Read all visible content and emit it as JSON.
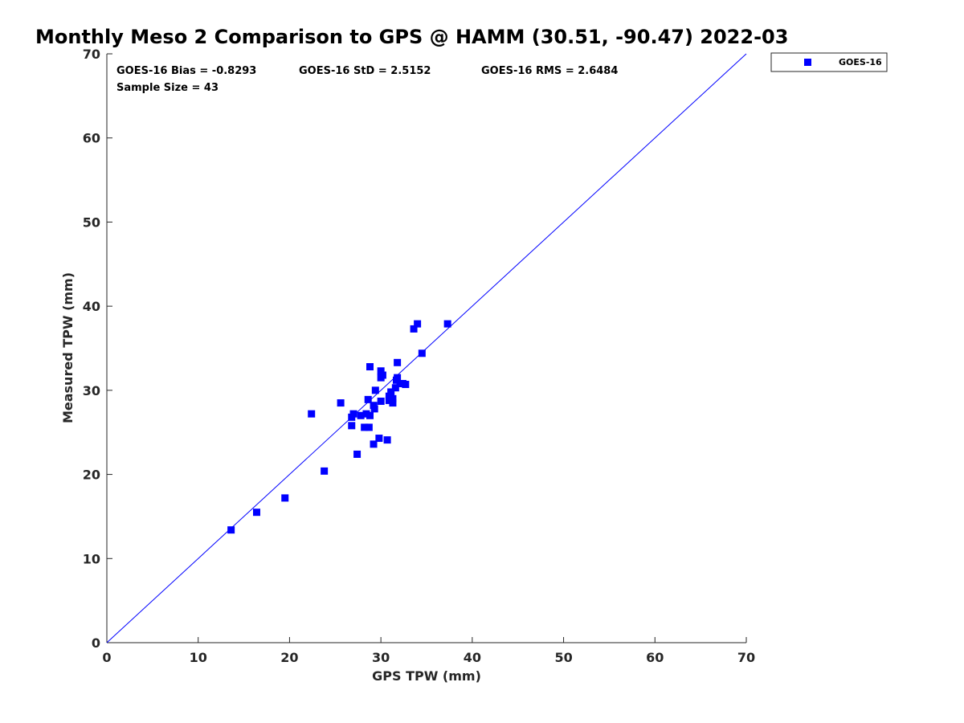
{
  "chart_data": {
    "type": "scatter",
    "title": "Monthly Meso 2 Comparison to GPS @ HAMM (30.51, -90.47) 2022-03",
    "xlabel": "GPS TPW (mm)",
    "ylabel": "Measured TPW (mm)",
    "xlim": [
      0,
      70
    ],
    "ylim": [
      0,
      70
    ],
    "xticks": [
      0,
      10,
      20,
      30,
      40,
      50,
      60,
      70
    ],
    "yticks": [
      0,
      10,
      20,
      30,
      40,
      50,
      60,
      70
    ],
    "grid": false,
    "legend": {
      "position": "outside-top-right",
      "entries": [
        "GOES-16"
      ]
    },
    "stats": {
      "bias": "GOES-16 Bias = -0.8293",
      "std": "GOES-16 StD = 2.5152",
      "rms": "GOES-16 RMS = 2.6484",
      "sample": "Sample Size = 43"
    },
    "reference_line": {
      "type": "one-to-one",
      "from": [
        0,
        0
      ],
      "to": [
        70,
        70
      ]
    },
    "series": [
      {
        "name": "GOES-16",
        "color": "#0000ff",
        "marker": "square",
        "points": [
          [
            13.6,
            13.4
          ],
          [
            16.4,
            15.5
          ],
          [
            19.5,
            17.2
          ],
          [
            22.4,
            27.2
          ],
          [
            23.8,
            20.4
          ],
          [
            25.6,
            28.5
          ],
          [
            26.8,
            25.8
          ],
          [
            26.8,
            26.8
          ],
          [
            27.0,
            27.2
          ],
          [
            27.4,
            22.4
          ],
          [
            27.8,
            27.0
          ],
          [
            28.2,
            25.6
          ],
          [
            28.4,
            27.2
          ],
          [
            28.6,
            28.9
          ],
          [
            28.7,
            25.6
          ],
          [
            28.8,
            27.0
          ],
          [
            28.8,
            32.8
          ],
          [
            29.2,
            23.6
          ],
          [
            29.2,
            28.2
          ],
          [
            29.3,
            27.8
          ],
          [
            29.4,
            30.0
          ],
          [
            29.8,
            24.3
          ],
          [
            30.0,
            28.7
          ],
          [
            30.0,
            32.3
          ],
          [
            30.0,
            31.5
          ],
          [
            30.2,
            31.8
          ],
          [
            30.7,
            24.1
          ],
          [
            30.9,
            28.8
          ],
          [
            30.9,
            29.3
          ],
          [
            31.1,
            29.8
          ],
          [
            31.3,
            28.5
          ],
          [
            31.3,
            29.0
          ],
          [
            31.6,
            30.3
          ],
          [
            31.8,
            31.5
          ],
          [
            31.8,
            33.3
          ],
          [
            32.1,
            30.8
          ],
          [
            32.4,
            30.8
          ],
          [
            32.7,
            30.7
          ],
          [
            33.6,
            37.3
          ],
          [
            34.0,
            37.9
          ],
          [
            34.5,
            34.4
          ],
          [
            37.3,
            37.9
          ],
          [
            31.7,
            31.2
          ]
        ]
      }
    ]
  }
}
